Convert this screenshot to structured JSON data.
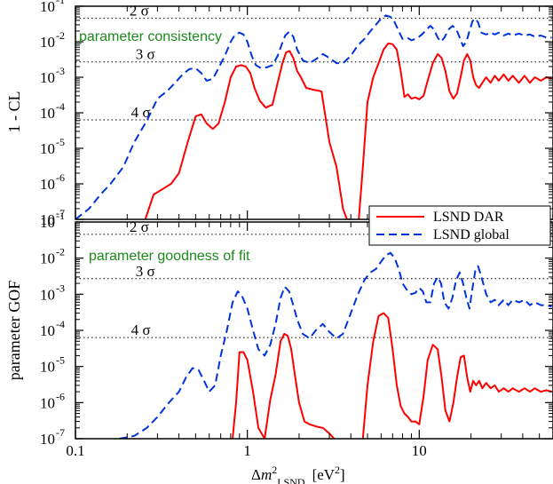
{
  "chart_data": [
    {
      "type": "line",
      "ylabel": "1 - CL",
      "xscale": "log",
      "yscale": "log",
      "xlim": [
        0.1,
        60
      ],
      "ylim": [
        1e-07,
        0.1
      ],
      "annotation": "parameter consistency",
      "sigma_levels": [
        {
          "label": "2 σ",
          "value": 0.0455
        },
        {
          "label": "3 σ",
          "value": 0.0027
        },
        {
          "label": "4 σ",
          "value": 6.3e-05
        }
      ],
      "series": [
        {
          "name": "LSND DAR",
          "color": "#ff0000",
          "style": "solid",
          "x": [
            0.255,
            0.285,
            0.32,
            0.36,
            0.4,
            0.45,
            0.5,
            0.54,
            0.58,
            0.63,
            0.68,
            0.74,
            0.8,
            0.86,
            0.92,
            0.98,
            1.04,
            1.1,
            1.18,
            1.28,
            1.4,
            1.5,
            1.6,
            1.68,
            1.76,
            1.85,
            1.95,
            2.05,
            2.2,
            2.4,
            2.7,
            3.0,
            3.3,
            3.6,
            3.8,
            3.95
          ],
          "values": [
            1e-07,
            5e-07,
            7e-07,
            1e-06,
            2e-06,
            1.5e-05,
            8e-05,
            9e-05,
            5e-05,
            3.5e-05,
            5e-05,
            0.0002,
            0.001,
            0.002,
            0.0022,
            0.002,
            0.0013,
            0.0005,
            0.00022,
            0.00014,
            0.00017,
            0.0007,
            0.0025,
            0.005,
            0.0055,
            0.0035,
            0.0015,
            0.001,
            0.0005,
            0.00045,
            0.0004,
            1.5e-05,
            3e-06,
            2e-07,
            1e-07,
            1e-07
          ]
        },
        {
          "name": "LSND DAR",
          "color": "#ff0000",
          "style": "solid",
          "x": [
            4.45,
            4.7,
            5.0,
            5.4,
            5.8,
            6.2,
            6.6,
            7.0,
            7.4,
            7.8,
            8.2,
            8.6,
            9.0,
            9.5,
            10.0,
            10.6,
            11.2,
            12.0,
            12.8,
            13.5,
            14.2,
            15.0,
            15.8,
            16.6,
            17.4,
            18.2,
            19.0,
            19.8,
            20.6,
            21.4,
            22.3,
            23.3,
            24.5,
            26.0,
            27.5,
            29.0,
            31.0,
            33.0,
            35.0,
            38.0,
            41.0,
            44.0,
            47.0,
            51.0,
            55.0,
            59.0
          ],
          "values": [
            1e-07,
            3e-06,
            0.0002,
            0.001,
            0.0025,
            0.006,
            0.009,
            0.0085,
            0.006,
            0.0015,
            0.00028,
            0.00033,
            0.00025,
            0.00027,
            0.00024,
            0.0003,
            0.0008,
            0.0025,
            0.0045,
            0.0035,
            0.0015,
            0.0004,
            0.00025,
            0.00035,
            0.001,
            0.003,
            0.0045,
            0.003,
            0.001,
            0.0006,
            0.0005,
            0.0007,
            0.001,
            0.0007,
            0.0011,
            0.0008,
            0.0012,
            0.0008,
            0.0011,
            0.0007,
            0.0011,
            0.0007,
            0.001,
            0.0008,
            0.001,
            0.0009
          ]
        },
        {
          "name": "LSND global",
          "color": "#0033dd",
          "style": "dashed",
          "x": [
            0.1,
            0.12,
            0.14,
            0.16,
            0.19,
            0.22,
            0.26,
            0.3,
            0.34,
            0.38,
            0.42,
            0.46,
            0.5,
            0.54,
            0.58,
            0.63,
            0.68,
            0.74,
            0.8,
            0.85,
            0.9,
            0.95,
            1.0,
            1.06,
            1.12,
            1.2,
            1.3,
            1.4,
            1.5,
            1.58,
            1.66,
            1.75,
            1.85,
            1.95,
            2.1,
            2.3,
            2.5,
            2.75,
            3.0,
            3.3,
            3.6,
            4.0,
            4.4,
            4.8,
            5.2,
            5.6,
            6.0,
            6.4,
            6.8,
            7.2,
            7.6,
            8.0,
            8.5,
            9.0,
            9.5,
            10.0,
            10.5,
            11.0,
            11.6,
            12.2,
            12.8,
            13.4,
            14.0,
            14.8,
            15.6,
            16.4,
            17.2,
            18.0,
            18.8,
            19.6,
            20.4,
            21.2,
            22.0,
            23.0,
            24.5,
            26.0,
            27.5,
            29.0,
            31.0,
            33.0,
            35.0,
            38.0,
            41.0,
            44.0,
            47.0,
            51.0,
            55.0,
            59.0
          ],
          "values": [
            1e-07,
            2e-07,
            5e-07,
            1e-06,
            3e-06,
            1.5e-05,
            6e-05,
            0.00025,
            0.0004,
            0.0007,
            0.0012,
            0.0017,
            0.0018,
            0.0013,
            0.0008,
            0.0009,
            0.0018,
            0.004,
            0.01,
            0.016,
            0.018,
            0.016,
            0.01,
            0.004,
            0.0022,
            0.0018,
            0.0019,
            0.0022,
            0.004,
            0.008,
            0.015,
            0.019,
            0.014,
            0.006,
            0.003,
            0.0025,
            0.0032,
            0.0045,
            0.0035,
            0.0025,
            0.0025,
            0.004,
            0.008,
            0.012,
            0.02,
            0.03,
            0.045,
            0.055,
            0.05,
            0.035,
            0.02,
            0.012,
            0.013,
            0.011,
            0.012,
            0.014,
            0.017,
            0.022,
            0.028,
            0.022,
            0.013,
            0.01,
            0.013,
            0.022,
            0.028,
            0.023,
            0.013,
            0.0075,
            0.01,
            0.02,
            0.038,
            0.045,
            0.035,
            0.018,
            0.016,
            0.018,
            0.016,
            0.018,
            0.015,
            0.017,
            0.015,
            0.017,
            0.015,
            0.016,
            0.014,
            0.015,
            0.013,
            0.013
          ]
        }
      ]
    },
    {
      "type": "line",
      "ylabel": "parameter GOF",
      "xlabel": "Δm²LSND [eV²]",
      "xscale": "log",
      "yscale": "log",
      "xlim": [
        0.1,
        60
      ],
      "ylim": [
        1e-07,
        0.1
      ],
      "xticks": [
        "0.1",
        "1",
        "10"
      ],
      "annotation": "parameter goodness of fit",
      "sigma_levels": [
        {
          "label": "2 σ",
          "value": 0.0455
        },
        {
          "label": "3 σ",
          "value": 0.0027
        },
        {
          "label": "4 σ",
          "value": 6.3e-05
        }
      ],
      "series": [
        {
          "name": "LSND DAR",
          "color": "#ff0000",
          "style": "solid",
          "x": [
            0.82,
            0.86,
            0.9,
            0.95,
            1.0,
            1.08,
            1.16,
            1.26,
            1.36,
            1.46,
            1.56,
            1.64,
            1.72,
            1.8,
            1.9,
            2.0,
            2.15,
            2.3,
            2.5,
            2.75,
            3.0,
            3.2
          ],
          "values": [
            1e-07,
            1e-06,
            2.5e-05,
            2.5e-05,
            1.5e-05,
            2e-06,
            2e-07,
            1e-07,
            1.2e-06,
            6e-06,
            5e-05,
            8e-05,
            7e-05,
            3e-05,
            5e-06,
            1e-06,
            3e-07,
            2.5e-07,
            2.2e-07,
            2e-07,
            1.4e-07,
            1e-07
          ]
        },
        {
          "name": "LSND DAR",
          "color": "#ff0000",
          "style": "solid",
          "x": [
            4.7,
            5.0,
            5.4,
            5.8,
            6.2,
            6.6,
            7.0,
            7.4,
            7.8,
            8.2,
            8.6,
            9.0,
            9.5,
            10.0,
            10.6,
            11.2,
            12.0,
            12.8,
            13.5,
            14.2,
            15.0,
            15.8,
            16.6,
            17.4,
            18.2,
            19.0,
            19.8,
            20.6,
            21.4,
            22.3,
            23.3,
            24.5,
            26.0,
            27.5,
            29.0,
            31.0,
            33.0,
            35.0,
            38.0,
            41.0,
            44.0,
            47.0,
            51.0,
            55.0,
            59.0
          ],
          "values": [
            1e-07,
            3e-06,
            5e-05,
            0.00025,
            0.0003,
            0.00022,
            3e-05,
            3e-06,
            8e-07,
            5e-07,
            4e-07,
            3e-07,
            3e-07,
            2.5e-07,
            1.5e-06,
            1.5e-05,
            4e-05,
            3e-05,
            5e-06,
            6e-07,
            3e-07,
            1e-06,
            5e-06,
            1.8e-05,
            2e-05,
            5e-06,
            2e-06,
            4e-06,
            3e-06,
            4e-06,
            2.5e-06,
            3.5e-06,
            2.5e-06,
            3e-06,
            2e-06,
            2.5e-06,
            2e-06,
            2.5e-06,
            2e-06,
            2.5e-06,
            2e-06,
            2.5e-06,
            2e-06,
            2.2e-06,
            2e-06
          ]
        },
        {
          "name": "LSND global",
          "color": "#0033dd",
          "style": "dashed",
          "x": [
            0.18,
            0.22,
            0.26,
            0.3,
            0.35,
            0.4,
            0.44,
            0.48,
            0.52,
            0.56,
            0.6,
            0.65,
            0.7,
            0.76,
            0.82,
            0.88,
            0.93,
            1.0,
            1.08,
            1.16,
            1.26,
            1.36,
            1.46,
            1.56,
            1.65,
            1.75,
            1.85,
            1.95,
            2.1,
            2.3,
            2.5,
            2.75,
            3.0,
            3.3,
            3.6,
            4.0,
            4.4,
            4.8,
            5.2,
            5.6,
            6.0,
            6.4,
            6.8,
            7.2,
            7.6,
            8.0,
            8.5,
            9.0,
            9.5,
            10.0,
            10.5,
            11.0,
            11.6,
            12.2,
            12.8,
            13.4,
            14.0,
            14.8,
            15.6,
            16.4,
            17.2,
            18.0,
            18.8,
            19.6,
            20.4,
            21.2,
            22.0,
            23.0,
            24.5,
            26.0,
            27.5,
            29.0,
            31.0,
            33.0,
            35.0,
            38.0,
            41.0,
            44.0,
            47.0,
            51.0,
            55.0,
            59.0
          ],
          "values": [
            1e-07,
            1.2e-07,
            2e-07,
            4e-07,
            1e-06,
            2e-06,
            5e-06,
            9e-06,
            8e-06,
            4e-06,
            2e-06,
            3e-06,
            2e-05,
            0.0001,
            0.0006,
            0.0012,
            0.0009,
            0.0004,
            0.0001,
            3e-05,
            2e-05,
            4e-05,
            0.00015,
            0.0008,
            0.0016,
            0.0012,
            0.0005,
            0.0002,
            8e-05,
            6e-05,
            0.0001,
            0.00015,
            9e-05,
            6e-05,
            8e-05,
            0.0003,
            0.001,
            0.0025,
            0.004,
            0.005,
            0.008,
            0.012,
            0.014,
            0.01,
            0.005,
            0.002,
            0.0013,
            0.001,
            0.0011,
            0.0015,
            0.0012,
            0.0006,
            0.0006,
            0.002,
            0.003,
            0.002,
            0.0006,
            0.0004,
            0.0008,
            0.0025,
            0.004,
            0.002,
            0.0008,
            0.0004,
            0.0015,
            0.0045,
            0.006,
            0.003,
            0.001,
            0.0006,
            0.0007,
            0.0005,
            0.0007,
            0.0005,
            0.0007,
            0.0006,
            0.0007,
            0.0005,
            0.0006,
            0.0005,
            0.0005,
            0.00045
          ]
        }
      ]
    }
  ],
  "legend": [
    {
      "label": "LSND DAR",
      "color": "#ff0000",
      "style": "solid"
    },
    {
      "label": "LSND global",
      "color": "#0033dd",
      "style": "dashed"
    }
  ],
  "ytick_labels": [
    "10",
    "10",
    "10",
    "10",
    "10",
    "10",
    "10"
  ],
  "ytick_exponents": [
    "-1",
    "-2",
    "-3",
    "-4",
    "-5",
    "-6",
    "-7"
  ]
}
